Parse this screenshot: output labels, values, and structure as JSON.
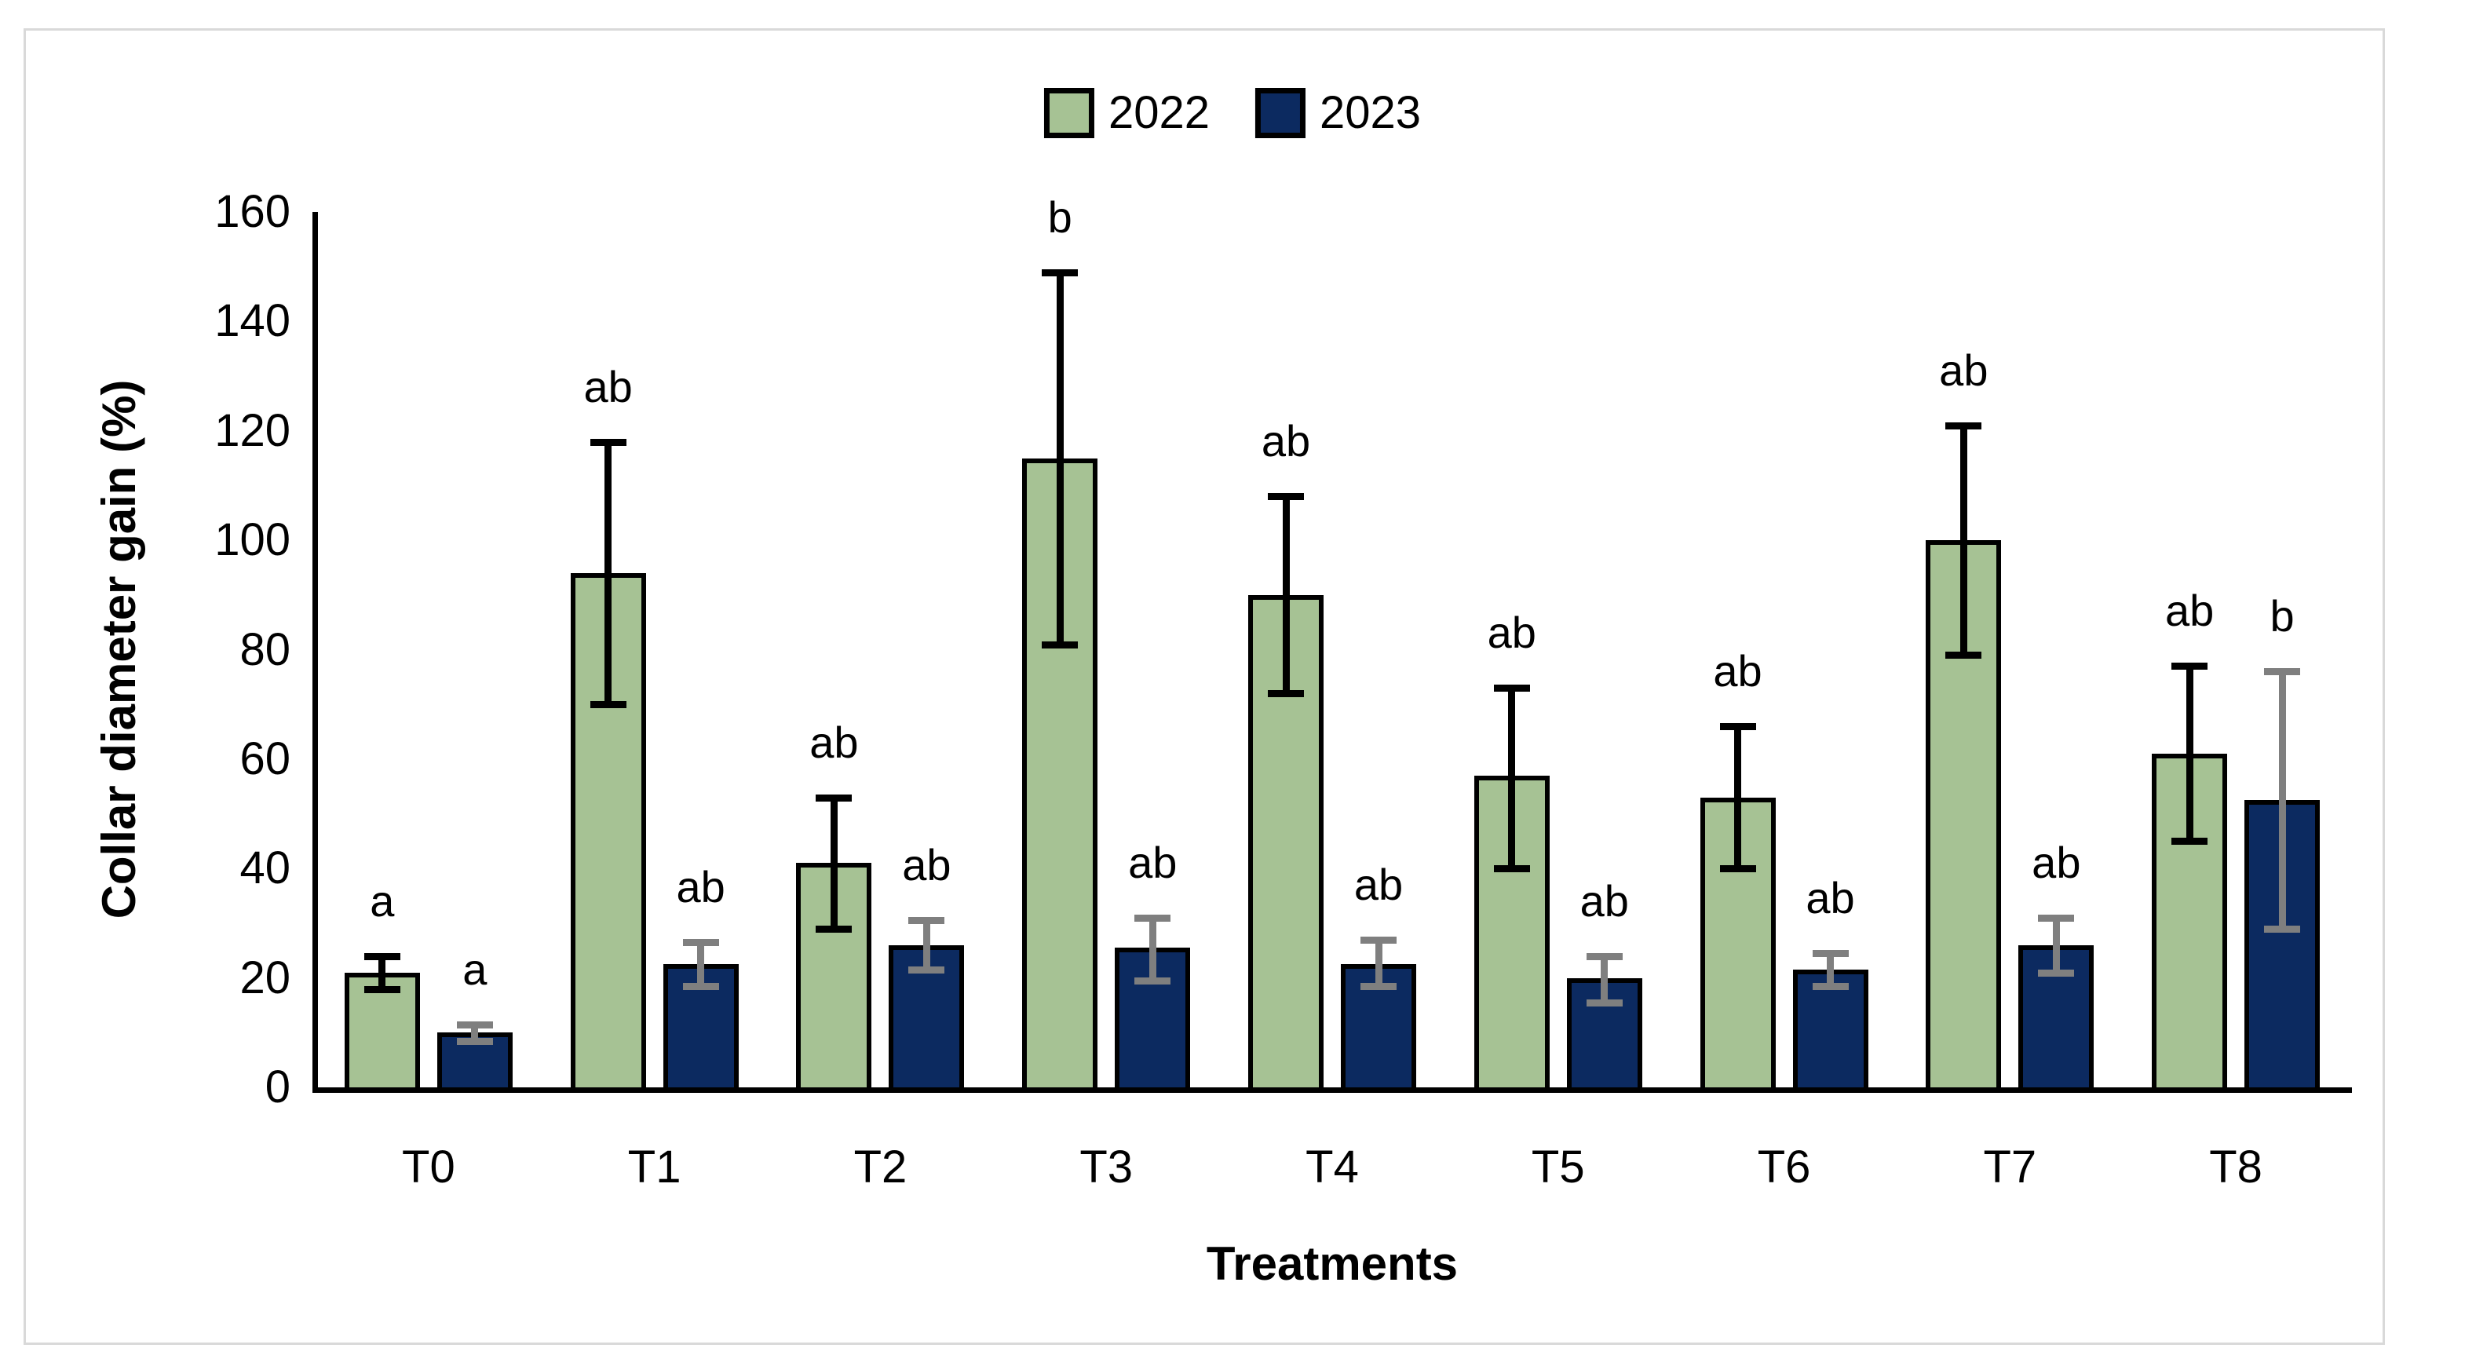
{
  "figure": {
    "background": "#ffffff",
    "border_color": "#d9d9d9"
  },
  "legend": {
    "position": "top-center",
    "items": [
      {
        "label": "2022",
        "color": "#a6c294"
      },
      {
        "label": "2023",
        "color": "#0c2a60"
      }
    ]
  },
  "axes": {
    "y_title": "Collar diameter gain (%)",
    "x_title": "Treatments",
    "y_ticks": [
      0,
      20,
      40,
      60,
      80,
      100,
      120,
      140,
      160
    ],
    "grid": "off",
    "axis_color": "#000000"
  },
  "chart_data": {
    "type": "bar",
    "title": "",
    "xlabel": "Treatments",
    "ylabel": "Collar diameter gain (%)",
    "ylim": [
      0,
      160
    ],
    "legend_position": "top",
    "categories": [
      "T0",
      "T1",
      "T2",
      "T3",
      "T4",
      "T5",
      "T6",
      "T7",
      "T8"
    ],
    "series": [
      {
        "name": "2022",
        "color": "#a6c294",
        "error_bar_color": "#000000",
        "values": [
          21,
          94,
          41,
          115,
          90,
          57,
          53,
          100,
          61
        ],
        "err_low": [
          18,
          70,
          29,
          81,
          72,
          40,
          40,
          79,
          45
        ],
        "err_high": [
          24,
          118,
          53,
          149,
          108,
          73,
          66,
          121,
          77
        ],
        "letters": [
          "a",
          "ab",
          "ab",
          "b",
          "ab",
          "ab",
          "ab",
          "ab",
          "ab"
        ]
      },
      {
        "name": "2023",
        "color": "#0c2a60",
        "error_bar_color": "#7f7f7f",
        "values": [
          10,
          22.5,
          26,
          25.5,
          22.5,
          20,
          21.5,
          26,
          52.5
        ],
        "err_low": [
          8.5,
          18.5,
          21.5,
          19.5,
          18.5,
          15.5,
          18.5,
          21,
          29
        ],
        "err_high": [
          11.5,
          26.5,
          30.5,
          31,
          27,
          24,
          24.5,
          31,
          76
        ],
        "letters": [
          "a",
          "ab",
          "ab",
          "ab",
          "ab",
          "ab",
          "ab",
          "ab",
          "b"
        ]
      }
    ]
  }
}
